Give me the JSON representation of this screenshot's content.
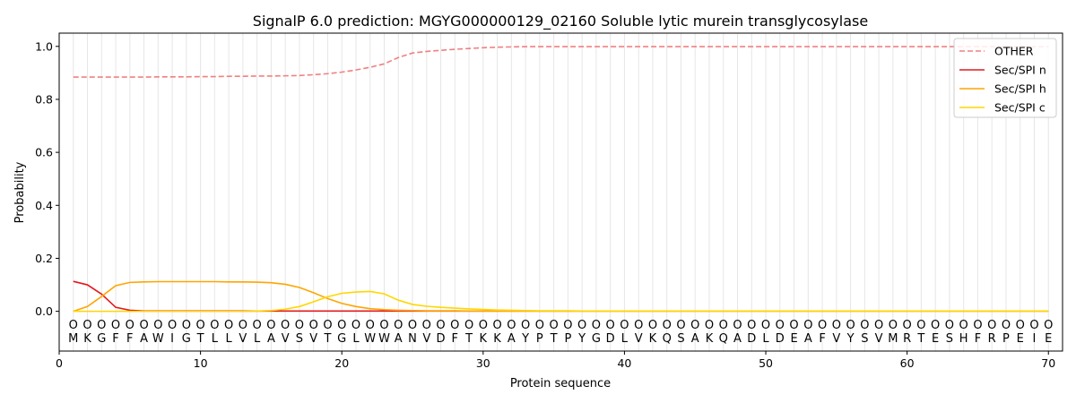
{
  "chart_data": {
    "type": "line",
    "title": "SignalP 6.0 prediction: MGYG000000129_02160 Soluble lytic murein transglycosylase",
    "xlabel": "Protein sequence",
    "ylabel": "Probability",
    "xlim": [
      0,
      71
    ],
    "ylim": [
      -0.15,
      1.05
    ],
    "x_ticks": [
      0,
      10,
      20,
      30,
      40,
      50,
      60,
      70
    ],
    "y_ticks": [
      0.0,
      0.2,
      0.4,
      0.6,
      0.8,
      1.0
    ],
    "x_tick_labels": [
      "0",
      "10",
      "20",
      "30",
      "40",
      "50",
      "60",
      "70"
    ],
    "y_tick_labels": [
      "0.0",
      "0.2",
      "0.4",
      "0.6",
      "0.8",
      "1.0"
    ],
    "grid": "vertical",
    "legend_position": "top-right",
    "sequence": [
      "M",
      "K",
      "G",
      "F",
      "F",
      "A",
      "W",
      "I",
      "G",
      "T",
      "L",
      "L",
      "V",
      "L",
      "A",
      "V",
      "S",
      "V",
      "T",
      "G",
      "L",
      "W",
      "W",
      "A",
      "N",
      "V",
      "D",
      "F",
      "T",
      "K",
      "K",
      "A",
      "Y",
      "P",
      "T",
      "P",
      "Y",
      "G",
      "D",
      "L",
      "V",
      "K",
      "Q",
      "S",
      "A",
      "K",
      "Q",
      "A",
      "D",
      "L",
      "D",
      "E",
      "A",
      "F",
      "V",
      "Y",
      "S",
      "V",
      "M",
      "R",
      "T",
      "E",
      "S",
      "H",
      "F",
      "R",
      "P",
      "E",
      "I",
      "E"
    ],
    "marker_label": "O",
    "series": [
      {
        "name": "OTHER",
        "color": "#f08080",
        "dash": true,
        "values": [
          0.884,
          0.884,
          0.884,
          0.884,
          0.884,
          0.884,
          0.885,
          0.885,
          0.885,
          0.886,
          0.886,
          0.887,
          0.887,
          0.888,
          0.888,
          0.889,
          0.89,
          0.893,
          0.897,
          0.903,
          0.911,
          0.921,
          0.934,
          0.958,
          0.975,
          0.981,
          0.985,
          0.989,
          0.992,
          0.995,
          0.997,
          0.998,
          0.999,
          0.999,
          0.999,
          0.999,
          0.999,
          0.999,
          0.999,
          0.999,
          0.999,
          0.999,
          0.999,
          0.999,
          0.999,
          0.999,
          0.999,
          0.999,
          0.999,
          0.999,
          0.999,
          0.999,
          0.999,
          0.999,
          0.999,
          0.999,
          0.999,
          0.999,
          0.999,
          0.999,
          0.999,
          0.999,
          0.999,
          0.999,
          0.999,
          0.999,
          0.999,
          0.999,
          0.999,
          0.999
        ]
      },
      {
        "name": "Sec/SPI n",
        "color": "#e31a1c",
        "dash": false,
        "values": [
          0.113,
          0.1,
          0.065,
          0.015,
          0.004,
          0.001,
          0.001,
          0.001,
          0.001,
          0.001,
          0.001,
          0.001,
          0.001,
          0.001,
          0.001,
          0.001,
          0.001,
          0.001,
          0.001,
          0.001,
          0.001,
          0.001,
          0.001,
          0.001,
          0.001,
          0.001,
          0.001,
          0.001,
          0.001,
          0.001,
          0.001,
          0.001,
          0.001,
          0.001,
          0.001,
          0.001,
          0.001,
          0.001,
          0.001,
          0.001,
          0.001,
          0.001,
          0.001,
          0.001,
          0.001,
          0.001,
          0.001,
          0.001,
          0.001,
          0.001,
          0.001,
          0.001,
          0.001,
          0.001,
          0.001,
          0.001,
          0.001,
          0.001,
          0.001,
          0.001,
          0.001,
          0.001,
          0.001,
          0.001,
          0.001,
          0.001,
          0.001,
          0.001,
          0.001,
          0.001
        ]
      },
      {
        "name": "Sec/SPI h",
        "color": "#ffa500",
        "dash": false,
        "values": [
          0.0,
          0.018,
          0.056,
          0.097,
          0.109,
          0.111,
          0.112,
          0.112,
          0.112,
          0.112,
          0.112,
          0.111,
          0.111,
          0.11,
          0.108,
          0.102,
          0.09,
          0.07,
          0.048,
          0.03,
          0.018,
          0.01,
          0.006,
          0.004,
          0.003,
          0.002,
          0.002,
          0.002,
          0.001,
          0.001,
          0.001,
          0.001,
          0.001,
          0.001,
          0.001,
          0.001,
          0.001,
          0.001,
          0.001,
          0.001,
          0.001,
          0.001,
          0.001,
          0.001,
          0.001,
          0.001,
          0.001,
          0.001,
          0.001,
          0.001,
          0.001,
          0.001,
          0.001,
          0.001,
          0.001,
          0.001,
          0.001,
          0.001,
          0.001,
          0.001,
          0.001,
          0.001,
          0.001,
          0.001,
          0.001,
          0.001,
          0.001,
          0.001,
          0.001,
          0.001
        ]
      },
      {
        "name": "Sec/SPI c",
        "color": "#ffd700",
        "dash": false,
        "values": [
          0.0,
          0.0,
          0.0,
          0.0,
          0.0,
          0.0,
          0.0,
          0.0,
          0.0,
          0.0,
          0.0,
          0.0,
          0.0,
          0.001,
          0.003,
          0.008,
          0.018,
          0.036,
          0.055,
          0.068,
          0.073,
          0.075,
          0.066,
          0.042,
          0.026,
          0.019,
          0.015,
          0.012,
          0.009,
          0.007,
          0.005,
          0.004,
          0.003,
          0.002,
          0.002,
          0.002,
          0.001,
          0.001,
          0.001,
          0.001,
          0.001,
          0.001,
          0.001,
          0.001,
          0.001,
          0.001,
          0.001,
          0.001,
          0.001,
          0.001,
          0.001,
          0.001,
          0.001,
          0.001,
          0.001,
          0.001,
          0.001,
          0.001,
          0.001,
          0.001,
          0.001,
          0.001,
          0.001,
          0.001,
          0.001,
          0.001,
          0.001,
          0.001,
          0.001,
          0.001
        ]
      }
    ]
  }
}
